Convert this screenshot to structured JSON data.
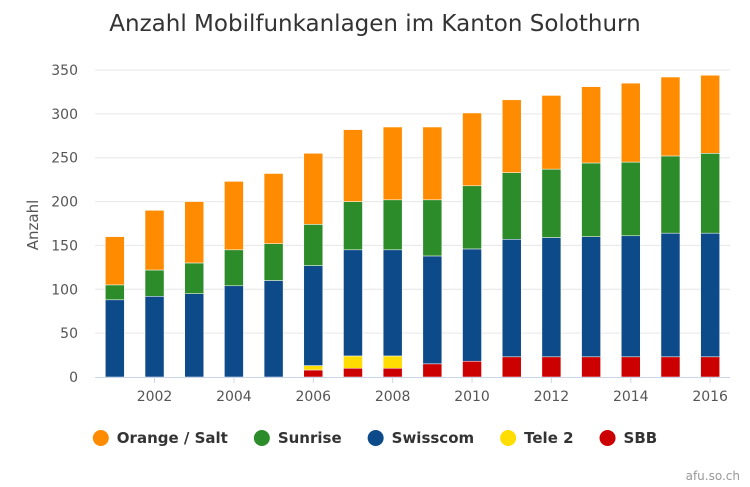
{
  "chart_data": {
    "type": "bar",
    "stacked": true,
    "title": "Anzahl Mobilfunkanlagen im Kanton Solothurn",
    "ylabel": "Anzahl",
    "xlabel": "",
    "ylim": [
      0,
      350
    ],
    "yticks": [
      "0",
      "50",
      "100",
      "150",
      "200",
      "250",
      "300",
      "350"
    ],
    "xticks": [
      "2002",
      "2004",
      "2006",
      "2008",
      "2010",
      "2012",
      "2014",
      "2016"
    ],
    "x_range": [
      2000.5,
      2016.5
    ],
    "grid": true,
    "legend_position": "bottom",
    "x": [
      2001,
      2002,
      2003,
      2004,
      2005,
      2006,
      2007,
      2008,
      2009,
      2010,
      2011,
      2012,
      2013,
      2014,
      2015,
      2016
    ],
    "series": [
      {
        "name": "SBB",
        "color": "#cc0000",
        "values": [
          0,
          0,
          0,
          0,
          0,
          8,
          10,
          10,
          15,
          18,
          23,
          23,
          23,
          23,
          23,
          23
        ]
      },
      {
        "name": "Tele 2",
        "color": "#ffdd00",
        "values": [
          0,
          0,
          0,
          0,
          0,
          5,
          14,
          14,
          0,
          0,
          0,
          0,
          0,
          0,
          0,
          0
        ]
      },
      {
        "name": "Swisscom",
        "color": "#0d4a8a",
        "values": [
          88,
          92,
          95,
          104,
          110,
          114,
          121,
          121,
          123,
          128,
          134,
          136,
          137,
          138,
          141,
          141
        ]
      },
      {
        "name": "Sunrise",
        "color": "#2d8c2a",
        "values": [
          17,
          30,
          35,
          41,
          42,
          47,
          55,
          57,
          64,
          72,
          76,
          78,
          84,
          84,
          88,
          91
        ]
      },
      {
        "name": "Orange / Salt",
        "color": "#ff8c00",
        "values": [
          55,
          68,
          70,
          78,
          80,
          81,
          82,
          83,
          83,
          83,
          83,
          84,
          87,
          90,
          90,
          89
        ]
      }
    ],
    "legend_order": [
      "Orange / Salt",
      "Sunrise",
      "Swisscom",
      "Tele 2",
      "SBB"
    ],
    "credits": "afu.so.ch"
  }
}
